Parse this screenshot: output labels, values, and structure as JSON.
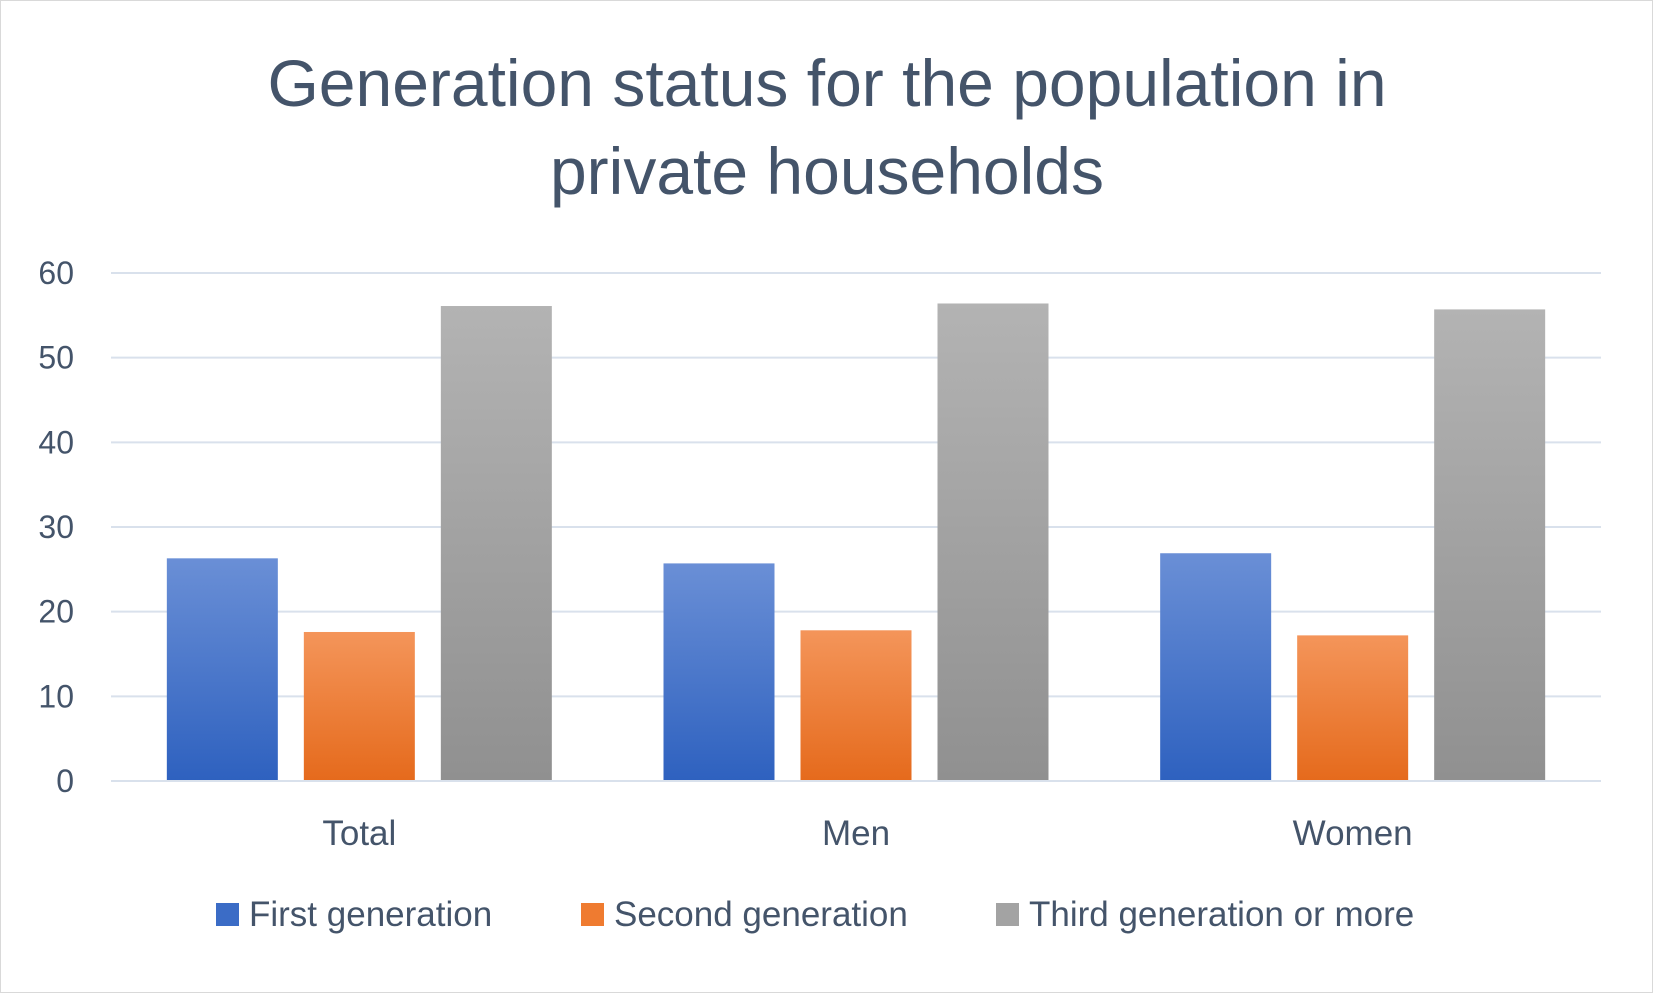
{
  "chart_data": {
    "type": "bar",
    "title_lines": [
      "Generation status for the population in",
      "private households"
    ],
    "categories": [
      "Total",
      "Men",
      "Women"
    ],
    "series": [
      {
        "name": "First generation",
        "values": [
          26.3,
          25.7,
          26.9
        ],
        "color_top": "#6a8fd6",
        "color_bottom": "#2e61bf",
        "legend_color": "#3b6cc6"
      },
      {
        "name": "Second generation",
        "values": [
          17.6,
          17.8,
          17.2
        ],
        "color_top": "#f4955a",
        "color_bottom": "#e56a1c",
        "legend_color": "#ef7b30"
      },
      {
        "name": "Third generation or more",
        "values": [
          56.1,
          56.4,
          55.7
        ],
        "color_top": "#b3b3b3",
        "color_bottom": "#909090",
        "legend_color": "#a3a3a3"
      }
    ],
    "ylim": [
      0,
      60
    ],
    "yticks": [
      0,
      10,
      20,
      30,
      40,
      50,
      60
    ],
    "grid": true,
    "legend_position": "bottom"
  },
  "colors": {
    "text": "#44546a",
    "grid": "#d9e1ec",
    "frame": "#d9d9d9"
  }
}
